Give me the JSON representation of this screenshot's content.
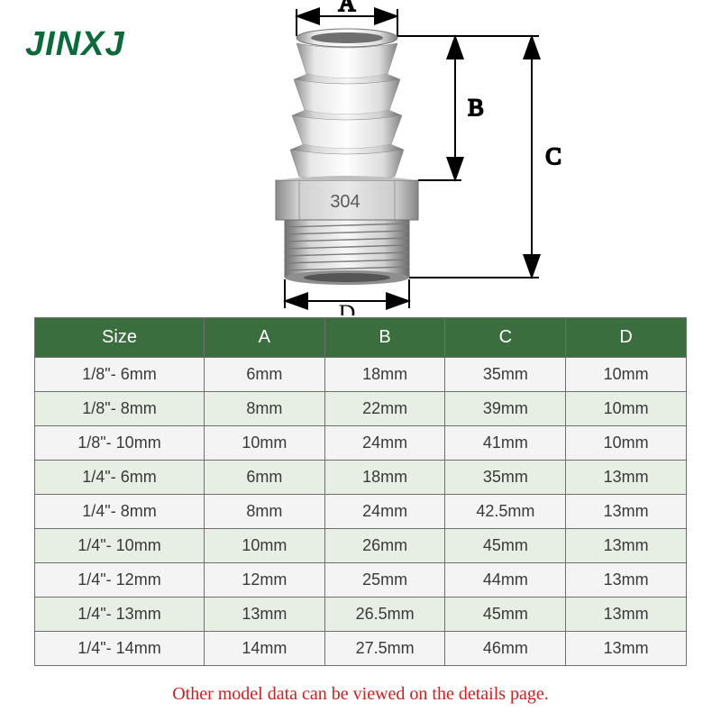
{
  "brand": {
    "text": "JINXJ",
    "color": "#0a6b3a"
  },
  "diagram": {
    "labels": {
      "A": "A",
      "B": "B",
      "C": "C",
      "D": "D"
    },
    "label_font": "Times New Roman, serif",
    "label_fontsize": 26,
    "arrow_color": "#000000",
    "fitting_stamp": "304"
  },
  "table": {
    "header_bg": "#3a6e3f",
    "header_text_color": "#ffffff",
    "border_color": "#6f6f6f",
    "row_odd_bg": "#f4f4f4",
    "row_even_bg": "#e7efe5",
    "cell_text_color": "#393939",
    "columns": [
      "Size",
      "A",
      "B",
      "C",
      "D"
    ],
    "rows": [
      [
        "1/8\"- 6mm",
        "6mm",
        "18mm",
        "35mm",
        "10mm"
      ],
      [
        "1/8\"- 8mm",
        "8mm",
        "22mm",
        "39mm",
        "10mm"
      ],
      [
        "1/8\"- 10mm",
        "10mm",
        "24mm",
        "41mm",
        "10mm"
      ],
      [
        "1/4\"- 6mm",
        "6mm",
        "18mm",
        "35mm",
        "13mm"
      ],
      [
        "1/4\"- 8mm",
        "8mm",
        "24mm",
        "42.5mm",
        "13mm"
      ],
      [
        "1/4\"- 10mm",
        "10mm",
        "26mm",
        "45mm",
        "13mm"
      ],
      [
        "1/4\"- 12mm",
        "12mm",
        "25mm",
        "44mm",
        "13mm"
      ],
      [
        "1/4\"- 13mm",
        "13mm",
        "26.5mm",
        "45mm",
        "13mm"
      ],
      [
        "1/4\"- 14mm",
        "14mm",
        "27.5mm",
        "46mm",
        "13mm"
      ]
    ]
  },
  "footnote": {
    "text": "Other model data can be viewed on the details page.",
    "color": "#d41d1d"
  }
}
